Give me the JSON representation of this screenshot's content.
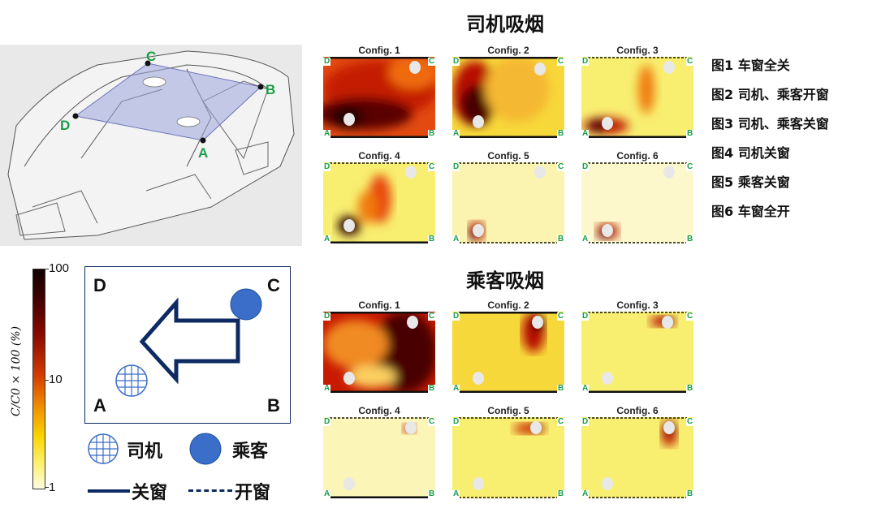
{
  "sections": {
    "driver": {
      "title": "司机吸烟"
    },
    "passenger": {
      "title": "乘客吸烟"
    }
  },
  "config_labels": [
    "Config. 1",
    "Config. 2",
    "Config. 3",
    "Config. 4",
    "Config. 5",
    "Config. 6"
  ],
  "corner_labels": {
    "a": "A",
    "b": "B",
    "c": "C",
    "d": "D"
  },
  "legend_items": [
    "图1 车窗全关",
    "图2 司机、乘客开窗",
    "图3 司机、乘客关窗",
    "图4 司机关窗",
    "图5 乘客关窗",
    "图6 车窗全开"
  ],
  "colorbar": {
    "label": "C/C0 × 100 (%)",
    "ticks": [
      "100",
      "10",
      "1"
    ],
    "scale": "log"
  },
  "key": {
    "driver": "司机",
    "passenger": "乘客",
    "closed": "关窗",
    "open": "开窗"
  },
  "car_points": [
    "A",
    "B",
    "C",
    "D"
  ],
  "colors": {
    "accent_green": "#1a9e4a",
    "navy": "#0d2a63",
    "passenger_blue": "#3a6ec8"
  }
}
